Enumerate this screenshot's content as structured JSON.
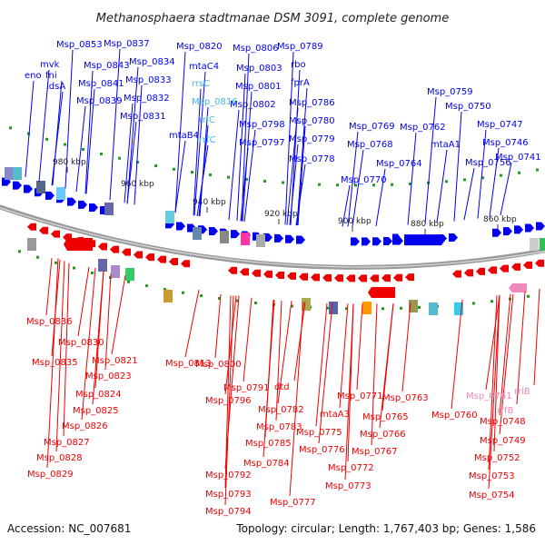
{
  "title": "Methanosphaera stadtmanae DSM 3091, complete genome",
  "footer": {
    "accession": "Accession: NC_007681",
    "summary": "Topology: circular; Length: 1,767,403 bp; Genes: 1,586"
  },
  "colors": {
    "forward_strand": "#0000ee",
    "reverse_strand": "#ee0000",
    "rna_label": "#44bbdd",
    "rrna_reverse": "#ee88bb",
    "backbone": "#888888",
    "tick_dot": "#229922"
  },
  "scale_ticks": [
    {
      "label": "980 kbp"
    },
    {
      "label": "960 kbp"
    },
    {
      "label": "940 kbp"
    },
    {
      "label": "920 kbp"
    },
    {
      "label": "900 kbp"
    },
    {
      "label": "880 kbp"
    },
    {
      "label": "860 kbp"
    }
  ],
  "forward_genes": [
    "Msp_0853",
    "eno",
    "fni",
    "mvk",
    "idsA",
    "Msp_0843",
    "Msp_0841",
    "Msp_0839",
    "Msp_0837",
    "Msp_0834",
    "Msp_0833",
    "Msp_0832",
    "Msp_0831",
    "Msp_0820",
    "mtaC4",
    "rrsC",
    "Msp_0816",
    "rrlC",
    "mtaB4",
    "rrfC",
    "Msp_0806",
    "Msp_0803",
    "Msp_0801",
    "Msp_0802",
    "Msp_0798",
    "Msp_0797",
    "Msp_0789",
    "rbo",
    "fprA",
    "Msp_0786",
    "Msp_0780",
    "Msp_0779",
    "Msp_0778",
    "Msp_0769",
    "Msp_0768",
    "Msp_0770",
    "Msp_0762",
    "Msp_0764",
    "mtaA1",
    "Msp_0759",
    "Msp_0750",
    "Msp_0747",
    "Msp_0746",
    "Msp_0756",
    "Msp_0741"
  ],
  "reverse_genes": [
    "Msp_0836",
    "Msp_0835",
    "Msp_0830",
    "Msp_0821",
    "Msp_0823",
    "Msp_0824",
    "Msp_0825",
    "Msp_0826",
    "Msp_0827",
    "Msp_0828",
    "Msp_0829",
    "Msp_0813",
    "Msp_0800",
    "Msp_0791",
    "Msp_0796",
    "Msp_0792",
    "Msp_0793",
    "Msp_0794",
    "dtd",
    "Msp_0782",
    "Msp_0783",
    "Msp_0785",
    "Msp_0784",
    "Msp_0777",
    "Msp_0771",
    "mtaA3",
    "Msp_0775",
    "Msp_0776",
    "Msp_0772",
    "Msp_0773",
    "Msp_0765",
    "Msp_0766",
    "Msp_0767",
    "Msp_0763",
    "Msp_0760",
    "Msp_0761",
    "rrlB",
    "rrfB",
    "Msp_0748",
    "Msp_0749",
    "Msp_0752",
    "Msp_0753",
    "Msp_0754"
  ]
}
